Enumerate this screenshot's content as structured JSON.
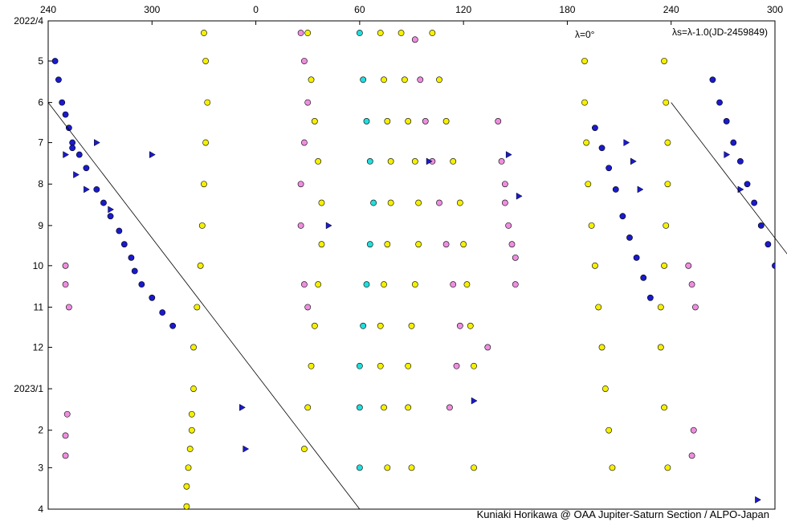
{
  "chart_data": {
    "type": "scatter",
    "title": "",
    "xlabel": "",
    "ylabel": "",
    "x_axis": {
      "kind": "longitude",
      "unwrapped_range": [
        240,
        300
      ],
      "tick_values": [
        240,
        300,
        360,
        420,
        480,
        540,
        600,
        660
      ],
      "tick_labels_top": [
        "240",
        "300",
        "0",
        "60",
        "120",
        "180",
        "240",
        "300"
      ]
    },
    "y_axis": {
      "kind": "date",
      "range": [
        "2022-04-01",
        "2023-04-01"
      ],
      "tick_labels": [
        "2022/4",
        "5",
        "6",
        "7",
        "8",
        "9",
        "10",
        "11",
        "12",
        "2023/1",
        "2",
        "3",
        "4"
      ],
      "inverted": true
    },
    "annotations": {
      "lambda_label": "λ=0°",
      "system_label": "λs=λ-1.0(JD-2459849)"
    },
    "colors": {
      "dark_blue": "#1a1acc",
      "yellow": "#f5f000",
      "pink": "#ee8ee0",
      "cyan": "#22dddd",
      "outline": "#000000"
    },
    "drift_line": {
      "name": "λ=0°",
      "points": [
        [
          "2022-06-01",
          240
        ],
        [
          "2023-04-01",
          420
        ]
      ]
    },
    "series": [
      {
        "color": "dark_blue",
        "marker": "circle",
        "x": [
          244,
          246,
          248,
          250,
          252,
          254,
          254,
          258,
          262,
          268,
          272,
          276,
          281,
          284,
          288,
          290,
          294,
          300,
          306,
          312
        ],
        "y": [
          "2022-05-01",
          "2022-05-15",
          "2022-06-01",
          "2022-06-10",
          "2022-06-20",
          "2022-07-01",
          "2022-07-05",
          "2022-07-10",
          "2022-07-20",
          "2022-08-05",
          "2022-08-15",
          "2022-08-25",
          "2022-09-05",
          "2022-09-15",
          "2022-09-25",
          "2022-10-05",
          "2022-10-15",
          "2022-10-25",
          "2022-11-05",
          "2022-11-15"
        ]
      },
      {
        "color": "yellow",
        "marker": "circle",
        "x": [
          330,
          331,
          332,
          331,
          330,
          329,
          328,
          326,
          324,
          324,
          323,
          323,
          322,
          321,
          320,
          320
        ],
        "y": [
          "2022-04-10",
          "2022-05-01",
          "2022-06-01",
          "2022-07-01",
          "2022-08-01",
          "2022-09-01",
          "2022-10-01",
          "2022-11-01",
          "2022-12-01",
          "2023-01-01",
          "2023-01-20",
          "2023-02-01",
          "2023-02-15",
          "2023-03-01",
          "2023-03-15",
          "2023-03-30"
        ]
      },
      {
        "color": "yellow",
        "marker": "circle",
        "x": [
          390,
          392,
          394,
          396,
          398,
          398,
          396,
          394,
          392,
          390,
          388
        ],
        "y": [
          "2022-04-10",
          "2022-05-15",
          "2022-06-15",
          "2022-07-15",
          "2022-08-15",
          "2022-09-15",
          "2022-10-15",
          "2022-11-15",
          "2022-12-15",
          "2023-01-15",
          "2023-02-15"
        ]
      },
      {
        "color": "pink",
        "marker": "circle",
        "x": [
          386,
          388,
          390,
          388,
          386,
          386,
          388,
          390
        ],
        "y": [
          "2022-04-10",
          "2022-05-01",
          "2022-06-01",
          "2022-07-01",
          "2022-08-01",
          "2022-09-01",
          "2022-10-15",
          "2022-11-01"
        ]
      },
      {
        "color": "cyan",
        "marker": "circle",
        "x": [
          420,
          422,
          424,
          426,
          428,
          426,
          424,
          422,
          420,
          420,
          420
        ],
        "y": [
          "2022-04-10",
          "2022-05-15",
          "2022-06-15",
          "2022-07-15",
          "2022-08-15",
          "2022-09-15",
          "2022-10-15",
          "2022-11-15",
          "2022-12-15",
          "2023-01-15",
          "2023-03-01"
        ]
      },
      {
        "color": "yellow",
        "marker": "circle",
        "x": [
          432,
          434,
          436,
          438,
          438,
          436,
          434,
          432,
          432,
          434,
          436
        ],
        "y": [
          "2022-04-10",
          "2022-05-15",
          "2022-06-15",
          "2022-07-15",
          "2022-08-15",
          "2022-09-15",
          "2022-10-15",
          "2022-11-15",
          "2022-12-15",
          "2023-01-15",
          "2023-03-01"
        ]
      },
      {
        "color": "yellow",
        "marker": "circle",
        "x": [
          444,
          446,
          448,
          452,
          454,
          454,
          452,
          450,
          448,
          448,
          450
        ],
        "y": [
          "2022-04-10",
          "2022-05-15",
          "2022-06-15",
          "2022-07-15",
          "2022-08-15",
          "2022-09-15",
          "2022-10-15",
          "2022-11-15",
          "2022-12-15",
          "2023-01-15",
          "2023-03-01"
        ]
      },
      {
        "color": "pink",
        "marker": "circle",
        "x": [
          452,
          455,
          458,
          462,
          466,
          470,
          474,
          478,
          476,
          472
        ],
        "y": [
          "2022-04-15",
          "2022-05-15",
          "2022-06-15",
          "2022-07-15",
          "2022-08-15",
          "2022-09-15",
          "2022-10-15",
          "2022-11-15",
          "2022-12-15",
          "2023-01-15"
        ]
      },
      {
        "color": "yellow",
        "marker": "circle",
        "x": [
          462,
          466,
          470,
          474,
          478,
          480,
          482,
          484,
          486,
          486
        ],
        "y": [
          "2022-04-10",
          "2022-05-15",
          "2022-06-15",
          "2022-07-15",
          "2022-08-15",
          "2022-09-15",
          "2022-10-15",
          "2022-11-15",
          "2022-12-15",
          "2023-03-01"
        ]
      },
      {
        "color": "pink",
        "marker": "circle",
        "x": [
          500,
          502,
          504,
          504,
          506,
          508,
          510,
          510,
          494
        ],
        "y": [
          "2022-06-15",
          "2022-07-15",
          "2022-08-01",
          "2022-08-15",
          "2022-09-01",
          "2022-09-15",
          "2022-09-25",
          "2022-10-15",
          "2022-12-01"
        ]
      },
      {
        "color": "yellow",
        "marker": "circle",
        "x": [
          550,
          550,
          551,
          552,
          554,
          556,
          558,
          560,
          562,
          564,
          566
        ],
        "y": [
          "2022-05-01",
          "2022-06-01",
          "2022-07-01",
          "2022-08-01",
          "2022-09-01",
          "2022-10-01",
          "2022-11-01",
          "2022-12-01",
          "2023-01-01",
          "2023-02-01",
          "2023-03-01"
        ]
      },
      {
        "color": "dark_blue",
        "marker": "circle",
        "x": [
          556,
          560,
          564,
          568,
          572,
          576,
          580,
          584,
          588
        ],
        "y": [
          "2022-06-20",
          "2022-07-05",
          "2022-07-20",
          "2022-08-05",
          "2022-08-25",
          "2022-09-10",
          "2022-09-25",
          "2022-10-10",
          "2022-10-25"
        ]
      },
      {
        "color": "yellow",
        "marker": "circle",
        "x": [
          596,
          597,
          598,
          598,
          597,
          596,
          594,
          594,
          596,
          598
        ],
        "y": [
          "2022-05-01",
          "2022-06-01",
          "2022-07-01",
          "2022-08-01",
          "2022-09-01",
          "2022-10-01",
          "2022-11-01",
          "2022-12-01",
          "2023-01-15",
          "2023-03-01"
        ]
      },
      {
        "color": "dark_blue",
        "marker": "circle",
        "x": [
          624,
          628,
          632,
          636,
          640,
          644,
          648,
          652,
          656,
          660
        ],
        "y": [
          "2022-05-15",
          "2022-06-01",
          "2022-06-15",
          "2022-07-01",
          "2022-07-15",
          "2022-08-01",
          "2022-08-15",
          "2022-09-01",
          "2022-09-15",
          "2022-10-01"
        ]
      },
      {
        "color": "pink",
        "marker": "circle",
        "x": [
          250,
          250,
          252,
          251,
          250,
          250
        ],
        "y": [
          "2022-10-01",
          "2022-10-15",
          "2022-11-01",
          "2023-01-20",
          "2023-02-05",
          "2023-02-20"
        ]
      },
      {
        "color": "pink",
        "marker": "circle",
        "x": [
          610,
          612,
          614,
          613,
          612
        ],
        "y": [
          "2022-10-01",
          "2022-10-15",
          "2022-11-01",
          "2023-02-01",
          "2023-02-20"
        ]
      },
      {
        "color": "dark_blue",
        "marker": "triangle",
        "x": [
          250,
          256,
          262,
          268,
          276,
          300,
          352,
          354,
          402,
          460,
          486,
          506,
          512,
          574,
          578,
          582,
          632,
          640,
          650,
          664
        ],
        "y": [
          "2022-07-10",
          "2022-07-25",
          "2022-08-05",
          "2022-07-01",
          "2022-08-20",
          "2022-07-10",
          "2023-01-15",
          "2023-02-15",
          "2022-09-01",
          "2022-07-15",
          "2023-01-10",
          "2022-07-10",
          "2022-08-10",
          "2022-07-01",
          "2022-07-15",
          "2022-08-05",
          "2022-07-10",
          "2022-08-05",
          "2023-03-25",
          "2023-03-30"
        ]
      }
    ]
  },
  "credit": "Kuniaki Horikawa @ OAA Jupiter-Saturn Section / ALPO-Japan"
}
